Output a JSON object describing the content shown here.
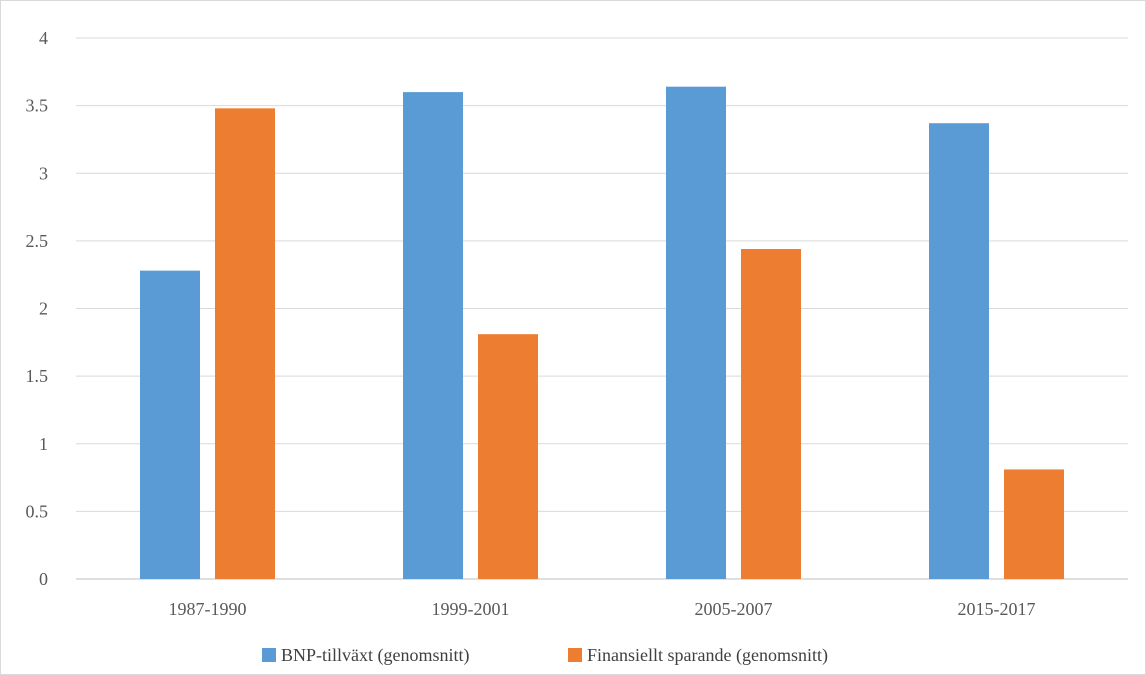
{
  "chart_data": {
    "type": "bar",
    "title": "",
    "xlabel": "",
    "ylabel": "",
    "categories": [
      "1987-1990",
      "1999-2001",
      "2005-2007",
      "2015-2017"
    ],
    "series": [
      {
        "name": "BNP-tillväxt (genomsnitt)",
        "values": [
          2.28,
          3.6,
          3.64,
          3.37
        ],
        "color": "#5B9BD5"
      },
      {
        "name": "Finansiellt sparande (genomsnitt)",
        "values": [
          3.48,
          1.81,
          2.44,
          0.81
        ],
        "color": "#ED7D31"
      }
    ],
    "ylim": [
      0,
      4
    ],
    "yticks": [
      "0",
      "0.5",
      "1",
      "1.5",
      "2",
      "2.5",
      "3",
      "3.5",
      "4"
    ],
    "grid": true,
    "legend_position": "bottom",
    "gridline_color": "#D9D9D9",
    "axis_color": "#BFBFBF"
  }
}
